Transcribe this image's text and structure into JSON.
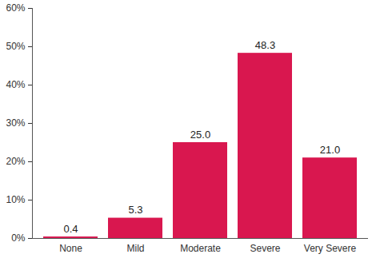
{
  "chart_data": {
    "type": "bar",
    "categories": [
      "None",
      "Mild",
      "Moderate",
      "Severe",
      "Very Severe"
    ],
    "values": [
      0.4,
      5.3,
      25.0,
      48.3,
      21.0
    ],
    "value_labels": [
      "0.4",
      "5.3",
      "25.0",
      "48.3",
      "21.0"
    ],
    "data_labels": true,
    "color": "#d9174f",
    "grid": false,
    "ylim": [
      0,
      60
    ],
    "yticks": [
      {
        "value": 0,
        "label": "0%"
      },
      {
        "value": 10,
        "label": "10%"
      },
      {
        "value": 20,
        "label": "20%"
      },
      {
        "value": 30,
        "label": "30%"
      },
      {
        "value": 40,
        "label": "40%"
      },
      {
        "value": 50,
        "label": "50%"
      },
      {
        "value": 60,
        "label": "60%"
      }
    ]
  }
}
